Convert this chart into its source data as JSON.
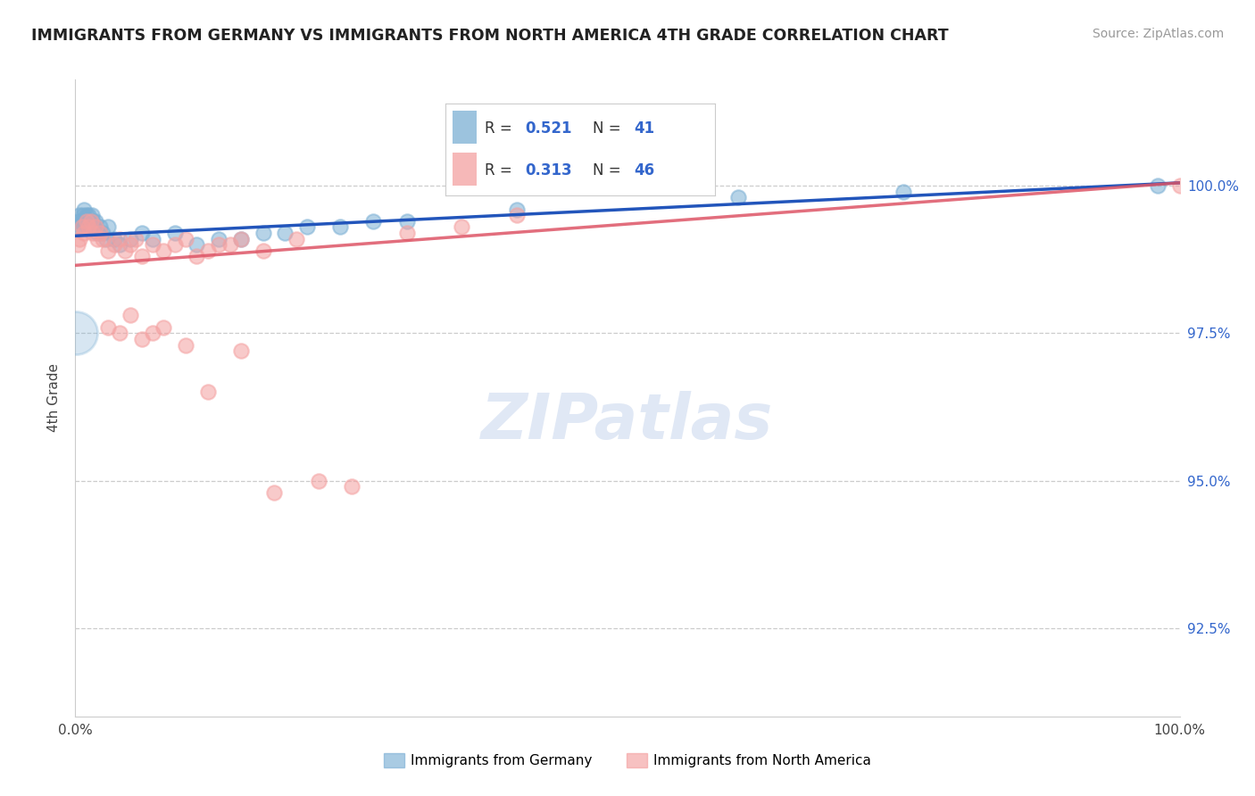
{
  "title": "IMMIGRANTS FROM GERMANY VS IMMIGRANTS FROM NORTH AMERICA 4TH GRADE CORRELATION CHART",
  "source": "Source: ZipAtlas.com",
  "ylabel": "4th Grade",
  "ytick_values": [
    92.5,
    95.0,
    97.5,
    100.0
  ],
  "xlim": [
    0.0,
    100.0
  ],
  "ylim": [
    91.0,
    101.8
  ],
  "legend_r1": "0.521",
  "legend_n1": "41",
  "legend_r2": "0.313",
  "legend_n2": "46",
  "legend_label1": "Immigrants from Germany",
  "legend_label2": "Immigrants from North America",
  "blue_color": "#7BAFD4",
  "pink_color": "#F4A0A0",
  "blue_line_color": "#2255BB",
  "pink_line_color": "#DD5566",
  "accent_color": "#3366CC",
  "blue_scatter_x": [
    0.2,
    0.3,
    0.4,
    0.5,
    0.6,
    0.7,
    0.8,
    0.9,
    1.0,
    1.1,
    1.2,
    1.3,
    1.4,
    1.5,
    1.6,
    1.7,
    1.8,
    2.0,
    2.2,
    2.5,
    2.8,
    3.0,
    3.5,
    4.0,
    5.0,
    6.0,
    7.0,
    9.0,
    11.0,
    13.0,
    15.0,
    17.0,
    19.0,
    21.0,
    24.0,
    27.0,
    30.0,
    40.0,
    60.0,
    75.0,
    98.0
  ],
  "blue_scatter_y": [
    99.3,
    99.4,
    99.5,
    99.3,
    99.4,
    99.5,
    99.6,
    99.4,
    99.5,
    99.3,
    99.5,
    99.4,
    99.3,
    99.5,
    99.4,
    99.3,
    99.4,
    99.2,
    99.3,
    99.2,
    99.1,
    99.3,
    99.1,
    99.0,
    99.1,
    99.2,
    99.1,
    99.2,
    99.0,
    99.1,
    99.1,
    99.2,
    99.2,
    99.3,
    99.3,
    99.4,
    99.4,
    99.6,
    99.8,
    99.9,
    100.0
  ],
  "pink_scatter_x": [
    0.2,
    0.4,
    0.6,
    0.8,
    1.0,
    1.2,
    1.4,
    1.6,
    1.8,
    2.0,
    2.2,
    2.5,
    3.0,
    3.5,
    4.0,
    4.5,
    5.0,
    5.5,
    6.0,
    7.0,
    8.0,
    9.0,
    10.0,
    11.0,
    12.0,
    13.0,
    14.0,
    15.0,
    17.0,
    20.0,
    3.0,
    4.0,
    5.0,
    6.0,
    7.0,
    8.0,
    10.0,
    12.0,
    15.0,
    18.0,
    22.0,
    25.0,
    30.0,
    35.0,
    40.0,
    100.0
  ],
  "pink_scatter_y": [
    99.0,
    99.1,
    99.3,
    99.2,
    99.4,
    99.3,
    99.4,
    99.2,
    99.3,
    99.1,
    99.2,
    99.1,
    98.9,
    99.0,
    99.1,
    98.9,
    99.0,
    99.1,
    98.8,
    99.0,
    98.9,
    99.0,
    99.1,
    98.8,
    98.9,
    99.0,
    99.0,
    99.1,
    98.9,
    99.1,
    97.6,
    97.5,
    97.8,
    97.4,
    97.5,
    97.6,
    97.3,
    96.5,
    97.2,
    94.8,
    95.0,
    94.9,
    99.2,
    99.3,
    99.5,
    100.0
  ],
  "blue_bubble_x": [
    0.05
  ],
  "blue_bubble_y": [
    97.5
  ],
  "blue_bubble_size": 1200,
  "grid_color": "#CCCCCC",
  "bg_color": "#FFFFFF",
  "watermark_color": "#E0E8F5"
}
